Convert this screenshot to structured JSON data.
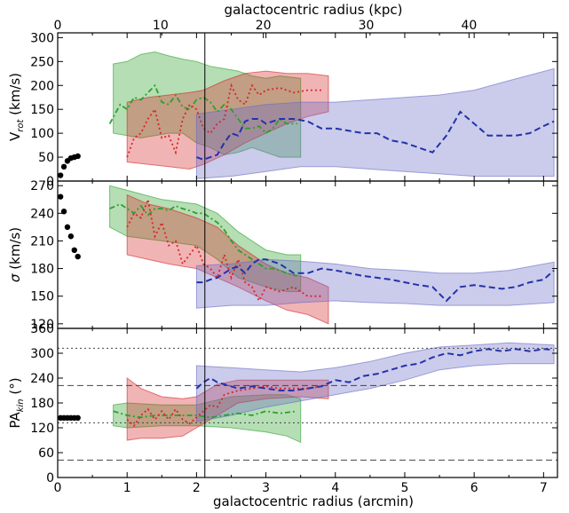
{
  "chart_data": [
    {
      "type": "line",
      "panel": "top",
      "ylabel_main": "V",
      "ylabel_sub": "rot",
      "ylabel_unit": " (km/s)",
      "top_xlabel": "galactocentric radius (kpc)",
      "top_xticks": [
        "0",
        "10",
        "20",
        "30",
        "40"
      ],
      "top_xlim": [
        0,
        48.6
      ],
      "xlim": [
        0,
        7.2
      ],
      "ylim": [
        0,
        310
      ],
      "yticks": [
        "0",
        "50",
        "100",
        "150",
        "200",
        "250",
        "300"
      ],
      "bands": [
        {
          "color": "#2ca02c",
          "x": [
            0.8,
            1.0,
            1.2,
            1.4,
            1.6,
            1.8,
            2.0,
            2.2,
            2.4,
            2.6,
            2.8,
            3.0,
            3.2,
            3.5
          ],
          "upper": [
            245,
            250,
            265,
            270,
            262,
            255,
            250,
            240,
            235,
            230,
            220,
            215,
            220,
            215
          ],
          "lower": [
            100,
            95,
            90,
            95,
            100,
            100,
            80,
            70,
            55,
            60,
            70,
            60,
            50,
            50
          ]
        },
        {
          "color": "#d62728",
          "x": [
            1.0,
            1.3,
            1.6,
            1.9,
            2.1,
            2.4,
            2.7,
            3.0,
            3.3,
            3.6,
            3.9
          ],
          "upper": [
            165,
            175,
            180,
            185,
            190,
            210,
            225,
            230,
            225,
            225,
            220
          ],
          "lower": [
            40,
            35,
            30,
            25,
            35,
            55,
            80,
            100,
            120,
            135,
            145
          ]
        },
        {
          "color": "#6b6bc6",
          "x": [
            2.0,
            2.5,
            3.0,
            3.5,
            4.0,
            4.5,
            5.0,
            5.5,
            6.0,
            6.5,
            7.15
          ],
          "upper": [
            140,
            150,
            160,
            165,
            165,
            170,
            175,
            180,
            190,
            210,
            235
          ],
          "lower": [
            5,
            10,
            20,
            30,
            30,
            25,
            20,
            15,
            10,
            10,
            10
          ]
        }
      ],
      "series": [
        {
          "color": "#2ca02c",
          "style": "dot-dash",
          "x": [
            0.75,
            0.9,
            1.0,
            1.1,
            1.2,
            1.3,
            1.4,
            1.5,
            1.6,
            1.7,
            1.8,
            1.9,
            2.0,
            2.1,
            2.2,
            2.3,
            2.4,
            2.5,
            2.6,
            2.7,
            2.8,
            2.9,
            3.0,
            3.1,
            3.2,
            3.3,
            3.45
          ],
          "y": [
            120,
            160,
            150,
            175,
            170,
            185,
            200,
            165,
            160,
            180,
            155,
            150,
            170,
            175,
            165,
            145,
            160,
            150,
            130,
            110,
            110,
            115,
            100,
            110,
            130,
            120,
            120
          ]
        },
        {
          "color": "#d62728",
          "style": "dotted",
          "x": [
            1.0,
            1.1,
            1.2,
            1.3,
            1.4,
            1.5,
            1.6,
            1.7,
            1.8,
            1.9,
            2.0,
            2.1,
            2.2,
            2.3,
            2.4,
            2.5,
            2.6,
            2.7,
            2.8,
            2.9,
            3.0,
            3.2,
            3.4,
            3.6,
            3.8
          ],
          "y": [
            50,
            90,
            100,
            130,
            150,
            90,
            95,
            60,
            130,
            160,
            150,
            110,
            100,
            120,
            130,
            200,
            170,
            160,
            200,
            180,
            190,
            195,
            185,
            190,
            190
          ]
        },
        {
          "color": "#2233aa",
          "style": "dashed",
          "x": [
            2.0,
            2.1,
            2.2,
            2.3,
            2.4,
            2.5,
            2.6,
            2.7,
            2.8,
            2.9,
            3.0,
            3.2,
            3.4,
            3.6,
            3.8,
            4.0,
            4.2,
            4.4,
            4.6,
            4.8,
            5.0,
            5.2,
            5.4,
            5.6,
            5.8,
            6.0,
            6.2,
            6.4,
            6.6,
            6.8,
            7.0,
            7.15
          ],
          "y": [
            50,
            45,
            50,
            55,
            80,
            100,
            95,
            125,
            130,
            130,
            120,
            130,
            130,
            125,
            110,
            110,
            105,
            100,
            100,
            85,
            80,
            70,
            60,
            95,
            145,
            120,
            95,
            95,
            95,
            100,
            115,
            125
          ]
        }
      ],
      "points": {
        "x": [
          0.04,
          0.09,
          0.14,
          0.19,
          0.24,
          0.29
        ],
        "y": [
          12,
          30,
          42,
          48,
          50,
          52
        ]
      }
    },
    {
      "type": "line",
      "panel": "middle",
      "ylabel_main": "σ",
      "ylabel_sub": "",
      "ylabel_unit": " (km/s)",
      "xlim": [
        0,
        7.2
      ],
      "ylim": [
        115,
        275
      ],
      "yticks": [
        "120",
        "150",
        "180",
        "210",
        "240",
        "270"
      ],
      "bands": [
        {
          "color": "#2ca02c",
          "x": [
            0.75,
            1.0,
            1.5,
            2.0,
            2.3,
            2.6,
            3.0,
            3.3,
            3.5
          ],
          "upper": [
            270,
            265,
            255,
            250,
            240,
            220,
            200,
            195,
            195
          ],
          "lower": [
            225,
            215,
            210,
            205,
            190,
            170,
            160,
            155,
            155
          ]
        },
        {
          "color": "#d62728",
          "x": [
            1.0,
            1.3,
            1.6,
            2.0,
            2.3,
            2.6,
            3.0,
            3.3,
            3.6,
            3.9
          ],
          "upper": [
            260,
            250,
            245,
            235,
            225,
            205,
            185,
            175,
            170,
            160
          ],
          "lower": [
            195,
            190,
            185,
            180,
            170,
            160,
            145,
            135,
            130,
            120
          ]
        },
        {
          "color": "#6b6bc6",
          "x": [
            2.0,
            2.5,
            3.0,
            3.5,
            4.0,
            4.5,
            5.0,
            5.5,
            6.0,
            6.5,
            7.15
          ],
          "upper": [
            183,
            185,
            190,
            188,
            185,
            180,
            178,
            175,
            175,
            178,
            187
          ],
          "lower": [
            137,
            140,
            140,
            143,
            145,
            143,
            142,
            140,
            140,
            140,
            143
          ]
        }
      ],
      "series": [
        {
          "color": "#2ca02c",
          "style": "dot-dash",
          "x": [
            0.75,
            0.9,
            1.0,
            1.1,
            1.2,
            1.3,
            1.4,
            1.5,
            1.6,
            1.7,
            1.8,
            1.9,
            2.0,
            2.1,
            2.2,
            2.3,
            2.4,
            2.5,
            2.6,
            2.7,
            2.8,
            2.9,
            3.0,
            3.1,
            3.2,
            3.3,
            3.45
          ],
          "y": [
            245,
            250,
            245,
            240,
            248,
            238,
            245,
            245,
            243,
            248,
            245,
            243,
            240,
            240,
            235,
            230,
            222,
            210,
            200,
            195,
            190,
            185,
            180,
            180,
            178,
            175,
            172
          ]
        },
        {
          "color": "#d62728",
          "style": "dotted",
          "x": [
            1.0,
            1.1,
            1.2,
            1.3,
            1.4,
            1.5,
            1.6,
            1.7,
            1.8,
            1.9,
            2.0,
            2.1,
            2.2,
            2.3,
            2.4,
            2.5,
            2.6,
            2.7,
            2.8,
            2.9,
            3.0,
            3.2,
            3.4,
            3.6,
            3.8
          ],
          "y": [
            225,
            240,
            235,
            255,
            215,
            230,
            205,
            210,
            185,
            195,
            205,
            185,
            180,
            170,
            195,
            170,
            190,
            165,
            160,
            145,
            160,
            155,
            160,
            150,
            150
          ]
        },
        {
          "color": "#2233aa",
          "style": "dashed",
          "x": [
            2.0,
            2.1,
            2.2,
            2.3,
            2.4,
            2.5,
            2.6,
            2.7,
            2.8,
            2.9,
            3.0,
            3.2,
            3.4,
            3.6,
            3.8,
            4.0,
            4.2,
            4.4,
            4.6,
            4.8,
            5.0,
            5.2,
            5.4,
            5.6,
            5.8,
            6.0,
            6.2,
            6.4,
            6.6,
            6.8,
            7.0,
            7.15
          ],
          "y": [
            165,
            165,
            168,
            170,
            175,
            180,
            182,
            175,
            185,
            190,
            190,
            185,
            175,
            175,
            180,
            178,
            175,
            172,
            170,
            168,
            165,
            162,
            160,
            145,
            160,
            162,
            160,
            158,
            160,
            165,
            168,
            178
          ]
        }
      ],
      "points": {
        "x": [
          0.04,
          0.09,
          0.14,
          0.19,
          0.24,
          0.29
        ],
        "y": [
          258,
          242,
          225,
          215,
          200,
          193
        ]
      }
    },
    {
      "type": "line",
      "panel": "bottom",
      "ylabel_main": "PA",
      "ylabel_sub": "kin",
      "ylabel_unit": " (°)",
      "xlabel": "galactocentric radius (arcmin)",
      "xlim": [
        0,
        7.2
      ],
      "xticks": [
        "0",
        "1",
        "2",
        "3",
        "4",
        "5",
        "6",
        "7"
      ],
      "ylim": [
        0,
        360
      ],
      "yticks": [
        "0",
        "60",
        "120",
        "180",
        "240",
        "300",
        "360"
      ],
      "hlines": [
        {
          "y": 312,
          "style": "dotted"
        },
        {
          "y": 222,
          "style": "dashed"
        },
        {
          "y": 132,
          "style": "dotted"
        },
        {
          "y": 42,
          "style": "dashed"
        }
      ],
      "bands": [
        {
          "color": "#2ca02c",
          "x": [
            0.8,
            1.0,
            1.5,
            2.0,
            2.5,
            3.0,
            3.3,
            3.5
          ],
          "upper": [
            175,
            180,
            175,
            175,
            195,
            200,
            200,
            190
          ],
          "lower": [
            125,
            120,
            125,
            125,
            120,
            110,
            100,
            85
          ]
        },
        {
          "color": "#d62728",
          "x": [
            1.0,
            1.2,
            1.5,
            1.8,
            2.0,
            2.3,
            2.6,
            3.0,
            3.5,
            3.9
          ],
          "upper": [
            240,
            215,
            195,
            190,
            195,
            225,
            235,
            235,
            235,
            235
          ],
          "lower": [
            90,
            95,
            95,
            100,
            120,
            150,
            180,
            190,
            195,
            190
          ]
        },
        {
          "color": "#6b6bc6",
          "x": [
            2.0,
            2.5,
            3.0,
            3.5,
            4.0,
            4.5,
            5.0,
            5.5,
            6.0,
            6.5,
            7.15
          ],
          "upper": [
            270,
            265,
            260,
            255,
            265,
            280,
            300,
            315,
            320,
            325,
            320
          ],
          "lower": [
            135,
            150,
            170,
            185,
            200,
            215,
            235,
            260,
            270,
            275,
            275
          ]
        }
      ],
      "series": [
        {
          "color": "#2ca02c",
          "style": "dot-dash",
          "x": [
            0.8,
            1.0,
            1.2,
            1.4,
            1.6,
            1.8,
            2.0,
            2.2,
            2.4,
            2.6,
            2.8,
            3.0,
            3.2,
            3.45
          ],
          "y": [
            160,
            150,
            145,
            150,
            150,
            150,
            150,
            145,
            150,
            155,
            150,
            160,
            155,
            160
          ]
        },
        {
          "color": "#d62728",
          "style": "dotted",
          "x": [
            1.0,
            1.1,
            1.2,
            1.3,
            1.4,
            1.5,
            1.6,
            1.7,
            1.8,
            1.9,
            2.0,
            2.1,
            2.2,
            2.3,
            2.4,
            2.6,
            2.8,
            3.0,
            3.2,
            3.4,
            3.6,
            3.8
          ],
          "y": [
            140,
            125,
            150,
            165,
            140,
            160,
            140,
            165,
            140,
            130,
            145,
            160,
            175,
            170,
            200,
            210,
            215,
            220,
            215,
            215,
            215,
            220
          ]
        },
        {
          "color": "#2233aa",
          "style": "dashed",
          "x": [
            2.0,
            2.1,
            2.2,
            2.3,
            2.4,
            2.6,
            2.8,
            3.0,
            3.2,
            3.4,
            3.6,
            3.8,
            4.0,
            4.2,
            4.4,
            4.6,
            4.8,
            5.0,
            5.2,
            5.4,
            5.6,
            5.8,
            6.0,
            6.2,
            6.4,
            6.6,
            6.8,
            7.0,
            7.15
          ],
          "y": [
            215,
            230,
            240,
            230,
            225,
            215,
            220,
            215,
            210,
            210,
            215,
            220,
            235,
            230,
            245,
            250,
            260,
            270,
            275,
            290,
            300,
            295,
            305,
            310,
            305,
            310,
            305,
            310,
            308
          ]
        }
      ],
      "points": {
        "x": [
          0.04,
          0.09,
          0.14,
          0.19,
          0.24,
          0.29
        ],
        "y": [
          144,
          144,
          144,
          144,
          144,
          144
        ]
      }
    }
  ]
}
